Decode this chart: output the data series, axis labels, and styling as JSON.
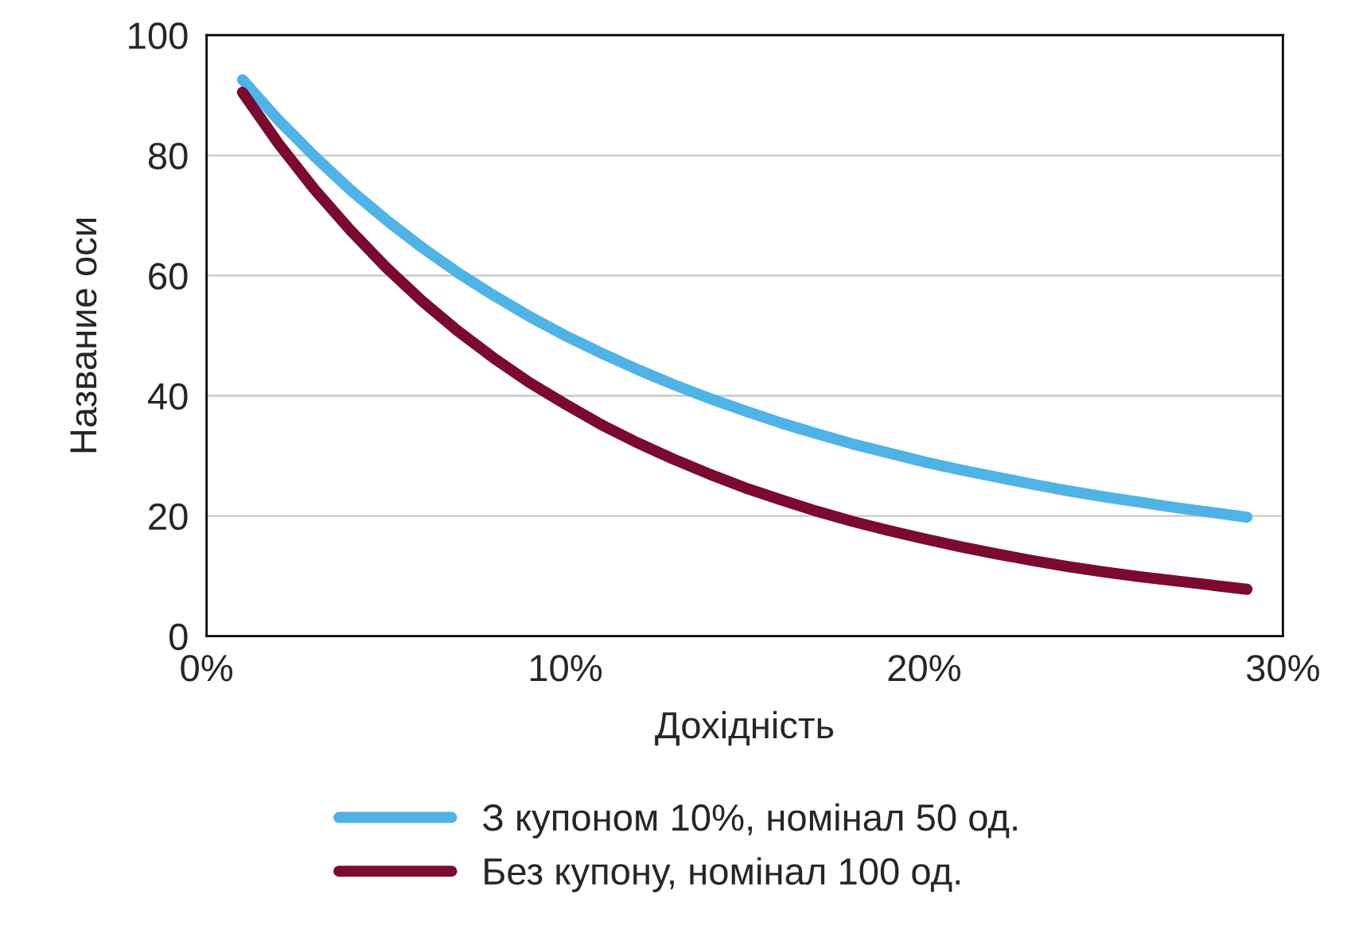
{
  "chart_data": {
    "type": "line",
    "xlabel": "Дохідність",
    "ylabel": "Название оси",
    "x": [
      1,
      2,
      3,
      4,
      5,
      6,
      7,
      8,
      9,
      10,
      11,
      12,
      13,
      14,
      15,
      16,
      17,
      18,
      19,
      20,
      21,
      22,
      23,
      24,
      25,
      26,
      27,
      28,
      29
    ],
    "series": [
      {
        "name": "З купоном 10%, номінал 50 од.",
        "color": "#4fb3e6",
        "values": [
          92.6,
          85.9,
          79.9,
          74.3,
          69.3,
          64.7,
          60.5,
          56.7,
          53.2,
          50.0,
          47.1,
          44.4,
          41.9,
          39.6,
          37.5,
          35.5,
          33.7,
          32.0,
          30.5,
          29.0,
          27.7,
          26.5,
          25.3,
          24.2,
          23.2,
          22.3,
          21.4,
          20.6,
          19.8
        ]
      },
      {
        "name": "Без купону, номінал 100 од.",
        "color": "#7a0a30",
        "values": [
          90.5,
          82.0,
          74.4,
          67.6,
          61.4,
          55.8,
          50.8,
          46.3,
          42.2,
          38.6,
          35.2,
          32.2,
          29.5,
          27.0,
          24.7,
          22.7,
          20.8,
          19.1,
          17.6,
          16.2,
          14.9,
          13.7,
          12.6,
          11.6,
          10.7,
          9.9,
          9.2,
          8.5,
          7.8
        ]
      }
    ],
    "xlim": [
      0,
      30
    ],
    "xticks": [
      {
        "value": 0,
        "label": "0%"
      },
      {
        "value": 10,
        "label": "10%"
      },
      {
        "value": 20,
        "label": "20%"
      },
      {
        "value": 30,
        "label": "30%"
      }
    ],
    "ylim": [
      0,
      100
    ],
    "yticks": [
      0,
      20,
      40,
      60,
      80,
      100
    ],
    "grid": "y",
    "legend": "bottom",
    "marker": "none",
    "line_style": "solid"
  }
}
